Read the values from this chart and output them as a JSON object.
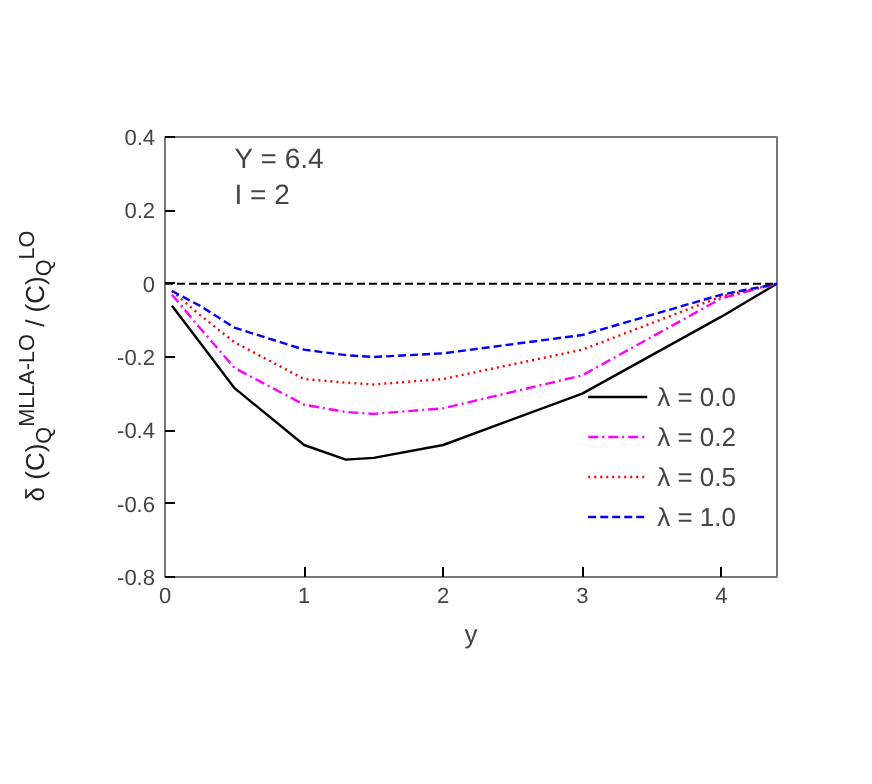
{
  "chart_data": {
    "type": "line",
    "xlabel": "y",
    "ylabel": "δ (C)$_{Q}$$^{MLLA-LO}$ / (C)$_{Q}$$^{LO}$",
    "annotations": [
      "Y = 6.4",
      "I = 2"
    ],
    "x": [
      0.05,
      0.25,
      0.5,
      1.0,
      1.3,
      1.5,
      2.0,
      3.0,
      4.0,
      4.4
    ],
    "series": [
      {
        "name": "λ = 0.0",
        "color": "#000000",
        "line_style": "solid",
        "values": [
          -0.06,
          -0.16,
          -0.285,
          -0.44,
          -0.48,
          -0.475,
          -0.44,
          -0.3,
          -0.09,
          0
        ]
      },
      {
        "name": "λ = 0.2",
        "color": "#ff00ff",
        "line_style": "dashdot",
        "values": [
          -0.03,
          -0.12,
          -0.23,
          -0.33,
          -0.35,
          -0.355,
          -0.34,
          -0.25,
          -0.04,
          0
        ]
      },
      {
        "name": "λ = 0.5",
        "color": "#ff0000",
        "line_style": "dotted",
        "values": [
          -0.02,
          -0.085,
          -0.16,
          -0.26,
          -0.27,
          -0.275,
          -0.26,
          -0.18,
          -0.035,
          0
        ]
      },
      {
        "name": "λ = 1.0",
        "color": "#0000ff",
        "line_style": "dashed",
        "values": [
          -0.02,
          -0.06,
          -0.12,
          -0.18,
          -0.195,
          -0.2,
          -0.19,
          -0.14,
          -0.03,
          0
        ]
      }
    ],
    "xlim": [
      0,
      4.4
    ],
    "xticks": [
      0,
      1,
      2,
      3,
      4
    ],
    "ylim": [
      -0.8,
      0.4
    ],
    "yticks": [
      {
        "value": -0.8,
        "label": "-0.8"
      },
      {
        "value": -0.6,
        "label": "-0.6"
      },
      {
        "value": -0.4,
        "label": "-0.4"
      },
      {
        "value": -0.2,
        "label": "-0.2"
      },
      0,
      {
        "value": 0.2,
        "label": "0.2"
      },
      {
        "value": 0.4,
        "label": "0.4"
      }
    ],
    "ref_lines": [
      {
        "axis": "y",
        "value": 0,
        "color": "#000000",
        "line_style": "dashed"
      }
    ],
    "grid": false,
    "legend": "bottom right"
  }
}
